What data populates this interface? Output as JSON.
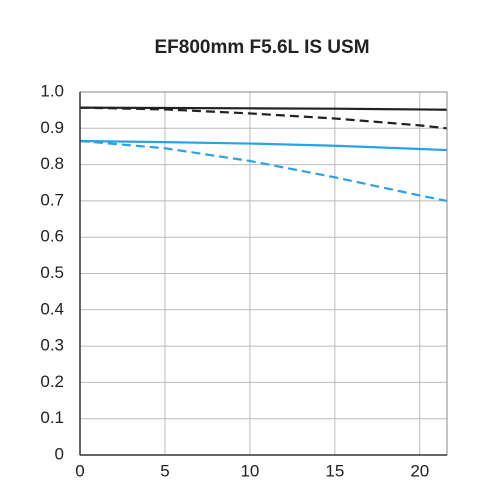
{
  "chart_data": {
    "type": "line",
    "title": "EF800mm F5.6L IS USM",
    "x": [
      0,
      5,
      10,
      15,
      20,
      21.6
    ],
    "series": [
      {
        "color": "#222222",
        "dash": false,
        "values": [
          0.957,
          0.956,
          0.955,
          0.954,
          0.952,
          0.951
        ]
      },
      {
        "color": "#222222",
        "dash": true,
        "values": [
          0.957,
          0.952,
          0.941,
          0.927,
          0.908,
          0.9
        ]
      },
      {
        "color": "#29a3e6",
        "dash": false,
        "values": [
          0.865,
          0.862,
          0.858,
          0.852,
          0.843,
          0.84
        ]
      },
      {
        "color": "#29a3e6",
        "dash": true,
        "values": [
          0.865,
          0.845,
          0.81,
          0.765,
          0.715,
          0.7
        ]
      }
    ],
    "xlim": [
      0,
      21.6
    ],
    "ylim": [
      0,
      1
    ],
    "xticks": [
      0,
      5,
      10,
      15,
      20
    ],
    "yticks": [
      0,
      0.1,
      0.2,
      0.3,
      0.4,
      0.5,
      0.6,
      0.7,
      0.8,
      0.9,
      {
        "value": 1,
        "label": "1.0"
      }
    ],
    "grid": true
  }
}
